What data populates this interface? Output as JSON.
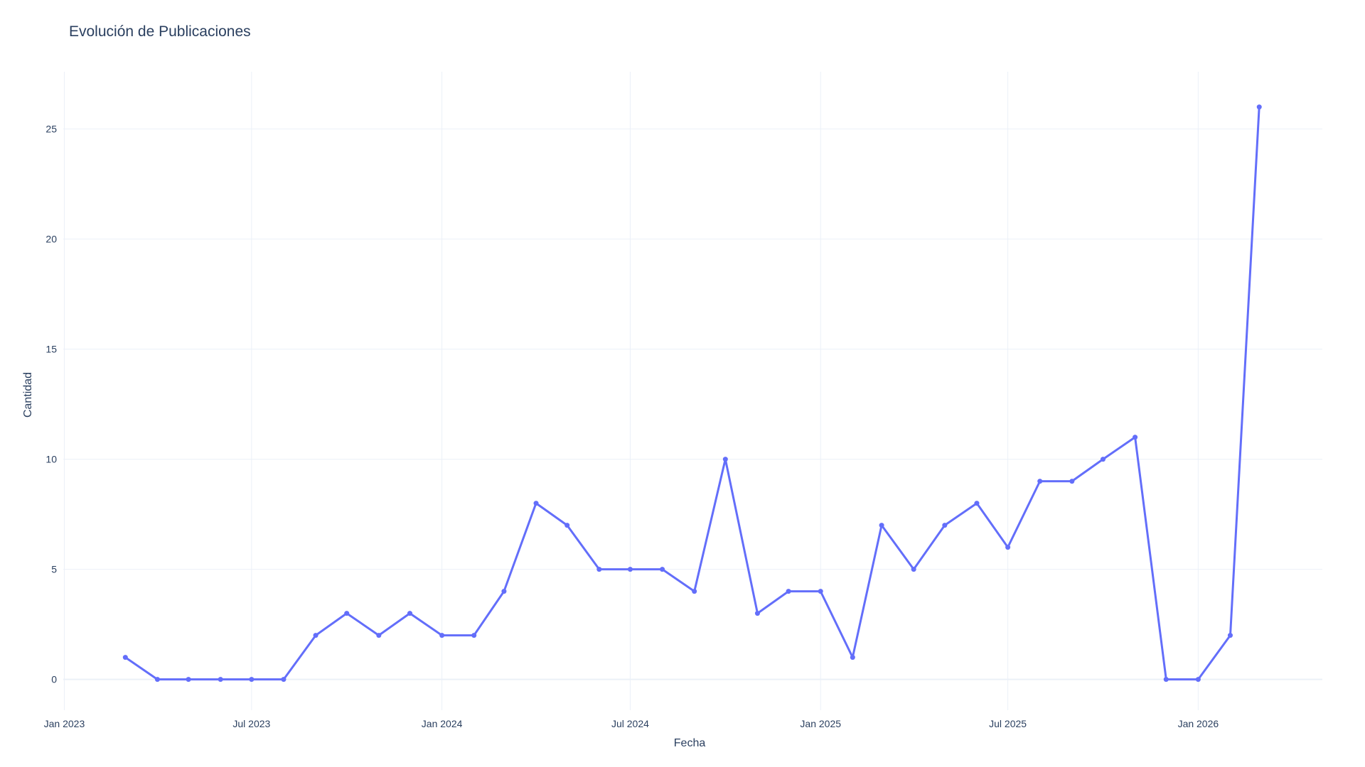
{
  "chart_data": {
    "type": "line",
    "title": "Evolución de Publicaciones",
    "xlabel": "Fecha",
    "ylabel": "Cantidad",
    "x_tick_labels": [
      "Jan 2023",
      "Jul 2023",
      "Jan 2024",
      "Jul 2024",
      "Jan 2025",
      "Jul 2025",
      "Jan 2026"
    ],
    "x_ticks": [
      "2023-01-01",
      "2023-07-01",
      "2024-01-01",
      "2024-07-01",
      "2025-01-01",
      "2025-07-01",
      "2026-01-01"
    ],
    "y_ticks": [
      0,
      5,
      10,
      15,
      20,
      25
    ],
    "xlim": [
      "2022-12-31",
      "2026-05-01"
    ],
    "ylim": [
      -1.4,
      27.6
    ],
    "grid": true,
    "legend": false,
    "line_color": "#636efa",
    "series": [
      {
        "x": [
          "2023-03-01",
          "2023-04-01",
          "2023-05-01",
          "2023-06-01",
          "2023-07-01",
          "2023-08-01",
          "2023-09-01",
          "2023-10-01",
          "2023-11-01",
          "2023-12-01",
          "2024-01-01",
          "2024-02-01",
          "2024-03-01",
          "2024-04-01",
          "2024-05-01",
          "2024-06-01",
          "2024-07-01",
          "2024-08-01",
          "2024-09-01",
          "2024-10-01",
          "2024-11-01",
          "2024-12-01",
          "2025-01-01",
          "2025-02-01",
          "2025-03-01",
          "2025-04-01",
          "2025-05-01",
          "2025-06-01",
          "2025-07-01",
          "2025-08-01",
          "2025-09-01",
          "2025-10-01",
          "2025-11-01",
          "2025-12-01",
          "2026-01-01",
          "2026-02-01",
          "2026-03-01"
        ],
        "y": [
          1,
          0,
          0,
          0,
          0,
          0,
          2,
          3,
          2,
          3,
          2,
          2,
          4,
          8,
          7,
          5,
          5,
          5,
          4,
          10,
          3,
          4,
          4,
          1,
          7,
          5,
          7,
          8,
          6,
          9,
          9,
          10,
          11,
          0,
          0,
          2,
          26
        ]
      }
    ]
  }
}
